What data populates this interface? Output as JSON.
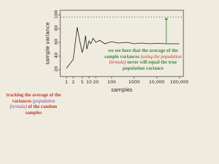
{
  "chart_data": {
    "type": "line",
    "x_label": "samples",
    "y_label": "sample variance",
    "x": [
      1,
      2,
      3,
      4,
      5,
      6,
      7,
      8,
      10,
      12,
      15,
      20,
      30,
      50,
      100,
      200,
      500,
      1000,
      2000,
      5000,
      10000,
      30000,
      100000
    ],
    "series": [
      {
        "color": "#111111",
        "values": [
          22,
          35,
          82,
          60,
          45,
          55,
          70,
          50,
          62,
          58,
          66,
          60,
          63,
          58,
          61,
          59,
          60,
          58,
          59,
          58,
          58.5,
          58,
          58
        ]
      }
    ],
    "reference_line": {
      "value": 97,
      "color": "#3b8a3b"
    },
    "xscale": "log",
    "xlim": [
      0.53,
      152000
    ],
    "xticks": [
      1,
      2,
      5,
      10,
      20,
      100,
      1000,
      {
        "value": 10000,
        "label": "10,000"
      },
      {
        "value": 100000,
        "label": "100,000"
      }
    ],
    "ylim": [
      10,
      107
    ],
    "yticks": [
      20,
      40,
      60,
      80,
      100
    ],
    "annotations": [
      {
        "parts": [
          "we see here that the average of the sample variances",
          "(using the population formula)",
          "never will equal the true population variance"
        ]
      },
      {
        "parts": [
          "tracking the average of the variances",
          "(population formula)",
          "of the random samples"
        ]
      }
    ]
  }
}
